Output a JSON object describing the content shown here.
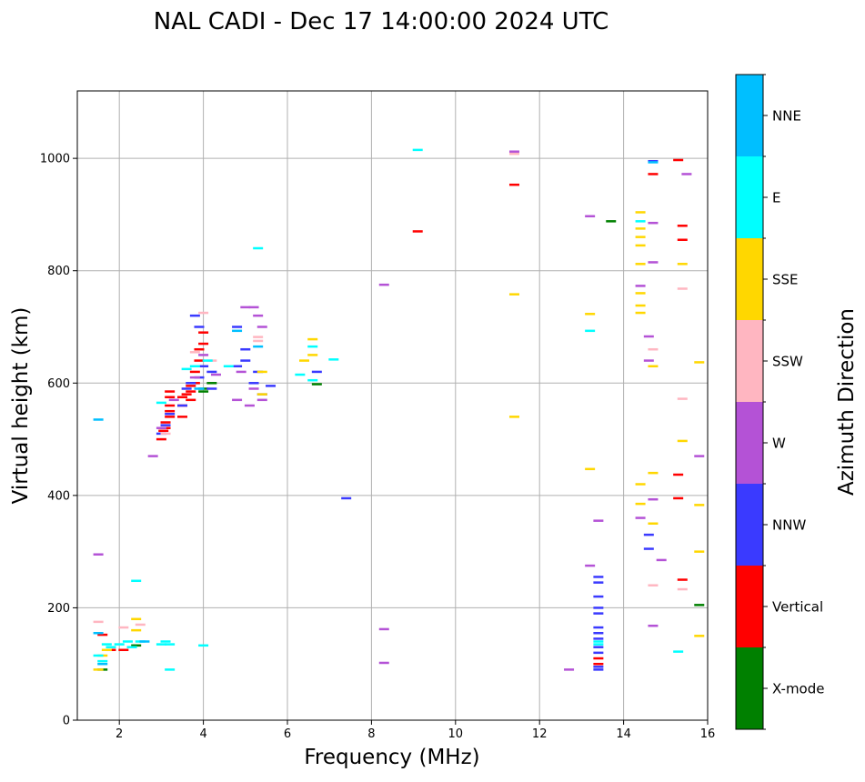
{
  "chart_data": {
    "type": "scatter",
    "title": "NAL CADI - Dec 17 14:00:00 2024 UTC",
    "xlabel": "Frequency (MHz)",
    "ylabel": "Virtual height (km)",
    "xlim": [
      1,
      16
    ],
    "ylim": [
      0,
      1120
    ],
    "xticks": [
      2,
      4,
      6,
      8,
      10,
      12,
      14,
      16
    ],
    "yticks": [
      0,
      200,
      400,
      600,
      800,
      1000
    ],
    "grid": true,
    "colorbar": {
      "label": "Azimuth Direction",
      "position": "right",
      "categories": [
        {
          "name": "X-mode",
          "color": "#008000"
        },
        {
          "name": "Vertical",
          "color": "#ff0000"
        },
        {
          "name": "NNW",
          "color": "#3a3aff"
        },
        {
          "name": "W",
          "color": "#b452d6"
        },
        {
          "name": "SSW",
          "color": "#ffb6c1"
        },
        {
          "name": "SSE",
          "color": "#ffd700"
        },
        {
          "name": "E",
          "color": "#00ffff"
        },
        {
          "name": "NNE",
          "color": "#00bfff"
        }
      ]
    },
    "series": [
      {
        "name": "X-mode",
        "color": "#008000",
        "points": [
          [
            1.6,
            90
          ],
          [
            2.4,
            133
          ],
          [
            4.0,
            585
          ],
          [
            4.0,
            590
          ],
          [
            4.2,
            600
          ],
          [
            6.7,
            598
          ],
          [
            13.7,
            888
          ],
          [
            15.8,
            205
          ]
        ]
      },
      {
        "name": "Vertical",
        "color": "#ff0000",
        "points": [
          [
            1.6,
            152
          ],
          [
            1.8,
            125
          ],
          [
            2.1,
            125
          ],
          [
            3.0,
            500
          ],
          [
            3.05,
            515
          ],
          [
            3.1,
            520
          ],
          [
            3.1,
            530
          ],
          [
            3.2,
            540
          ],
          [
            3.2,
            550
          ],
          [
            3.2,
            560
          ],
          [
            3.2,
            575
          ],
          [
            3.2,
            585
          ],
          [
            3.5,
            540
          ],
          [
            3.5,
            560
          ],
          [
            3.5,
            575
          ],
          [
            3.6,
            580
          ],
          [
            3.7,
            595
          ],
          [
            3.7,
            585
          ],
          [
            3.7,
            570
          ],
          [
            3.8,
            600
          ],
          [
            3.8,
            620
          ],
          [
            3.9,
            640
          ],
          [
            3.9,
            660
          ],
          [
            4.0,
            670
          ],
          [
            4.0,
            690
          ],
          [
            9.1,
            870
          ],
          [
            11.4,
            953
          ],
          [
            13.4,
            110
          ],
          [
            13.4,
            100
          ],
          [
            14.7,
            972
          ],
          [
            15.3,
            997
          ],
          [
            15.4,
            880
          ],
          [
            15.4,
            855
          ],
          [
            15.3,
            437
          ],
          [
            15.3,
            395
          ],
          [
            15.4,
            250
          ]
        ]
      },
      {
        "name": "NNW",
        "color": "#3a3aff",
        "points": [
          [
            3.0,
            510
          ],
          [
            3.1,
            525
          ],
          [
            3.2,
            545
          ],
          [
            3.5,
            560
          ],
          [
            3.6,
            590
          ],
          [
            3.7,
            600
          ],
          [
            3.8,
            720
          ],
          [
            3.9,
            700
          ],
          [
            3.9,
            610
          ],
          [
            4.0,
            630
          ],
          [
            4.2,
            590
          ],
          [
            4.2,
            620
          ],
          [
            4.8,
            700
          ],
          [
            4.8,
            630
          ],
          [
            5.0,
            640
          ],
          [
            5.0,
            660
          ],
          [
            5.2,
            600
          ],
          [
            5.3,
            620
          ],
          [
            5.4,
            580
          ],
          [
            5.6,
            595
          ],
          [
            6.7,
            620
          ],
          [
            7.4,
            395
          ],
          [
            13.4,
            255
          ],
          [
            13.4,
            245
          ],
          [
            13.4,
            220
          ],
          [
            13.4,
            200
          ],
          [
            13.4,
            190
          ],
          [
            13.4,
            165
          ],
          [
            13.4,
            155
          ],
          [
            13.4,
            145
          ],
          [
            13.4,
            130
          ],
          [
            13.4,
            120
          ],
          [
            13.4,
            95
          ],
          [
            13.4,
            90
          ],
          [
            14.7,
            995
          ],
          [
            14.6,
            330
          ],
          [
            14.6,
            305
          ]
        ]
      },
      {
        "name": "W",
        "color": "#b452d6",
        "points": [
          [
            1.5,
            295
          ],
          [
            2.8,
            470
          ],
          [
            3.0,
            520
          ],
          [
            3.3,
            570
          ],
          [
            3.8,
            610
          ],
          [
            4.0,
            650
          ],
          [
            4.3,
            615
          ],
          [
            4.8,
            570
          ],
          [
            4.9,
            620
          ],
          [
            5.0,
            735
          ],
          [
            5.1,
            560
          ],
          [
            5.2,
            735
          ],
          [
            5.3,
            720
          ],
          [
            5.4,
            700
          ],
          [
            5.4,
            570
          ],
          [
            5.2,
            590
          ],
          [
            8.3,
            775
          ],
          [
            8.3,
            162
          ],
          [
            8.3,
            102
          ],
          [
            11.4,
            1012
          ],
          [
            12.7,
            90
          ],
          [
            13.2,
            897
          ],
          [
            13.2,
            275
          ],
          [
            13.4,
            355
          ],
          [
            14.4,
            773
          ],
          [
            14.4,
            360
          ],
          [
            14.6,
            640
          ],
          [
            14.6,
            683
          ],
          [
            14.7,
            885
          ],
          [
            14.7,
            815
          ],
          [
            14.7,
            393
          ],
          [
            14.7,
            168
          ],
          [
            14.9,
            285
          ],
          [
            15.5,
            972
          ],
          [
            15.8,
            470
          ]
        ]
      },
      {
        "name": "SSW",
        "color": "#ffb6c1",
        "points": [
          [
            1.5,
            175
          ],
          [
            2.1,
            165
          ],
          [
            2.5,
            170
          ],
          [
            3.1,
            510
          ],
          [
            3.8,
            655
          ],
          [
            4.0,
            725
          ],
          [
            4.2,
            640
          ],
          [
            5.3,
            682
          ],
          [
            5.3,
            675
          ],
          [
            11.4,
            1008
          ],
          [
            14.7,
            660
          ],
          [
            14.7,
            240
          ],
          [
            15.4,
            768
          ],
          [
            15.4,
            572
          ],
          [
            15.4,
            233
          ]
        ]
      },
      {
        "name": "SSE",
        "color": "#ffd700",
        "points": [
          [
            1.5,
            90
          ],
          [
            1.6,
            115
          ],
          [
            1.7,
            125
          ],
          [
            2.4,
            180
          ],
          [
            2.4,
            160
          ],
          [
            5.4,
            620
          ],
          [
            5.4,
            580
          ],
          [
            6.4,
            640
          ],
          [
            6.6,
            678
          ],
          [
            6.6,
            650
          ],
          [
            11.4,
            758
          ],
          [
            11.4,
            540
          ],
          [
            13.2,
            723
          ],
          [
            13.2,
            447
          ],
          [
            14.4,
            904
          ],
          [
            14.4,
            875
          ],
          [
            14.4,
            860
          ],
          [
            14.4,
            845
          ],
          [
            14.4,
            812
          ],
          [
            14.4,
            760
          ],
          [
            14.4,
            738
          ],
          [
            14.4,
            725
          ],
          [
            14.4,
            420
          ],
          [
            14.4,
            385
          ],
          [
            14.7,
            440
          ],
          [
            14.7,
            350
          ],
          [
            14.7,
            630
          ],
          [
            15.4,
            812
          ],
          [
            15.4,
            497
          ],
          [
            15.8,
            637
          ],
          [
            15.8,
            383
          ],
          [
            15.8,
            300
          ],
          [
            15.8,
            150
          ]
        ]
      },
      {
        "name": "E",
        "color": "#00ffff",
        "points": [
          [
            1.5,
            115
          ],
          [
            1.6,
            105
          ],
          [
            1.7,
            135
          ],
          [
            1.8,
            130
          ],
          [
            2.0,
            135
          ],
          [
            2.2,
            140
          ],
          [
            2.3,
            130
          ],
          [
            2.5,
            140
          ],
          [
            3.0,
            135
          ],
          [
            3.1,
            140
          ],
          [
            3.2,
            135
          ],
          [
            3.2,
            90
          ],
          [
            4.0,
            133
          ],
          [
            2.4,
            248
          ],
          [
            3.0,
            565
          ],
          [
            3.6,
            625
          ],
          [
            3.8,
            630
          ],
          [
            4.1,
            640
          ],
          [
            4.6,
            630
          ],
          [
            5.3,
            840
          ],
          [
            6.3,
            615
          ],
          [
            6.6,
            665
          ],
          [
            6.6,
            605
          ],
          [
            7.1,
            642
          ],
          [
            9.1,
            1015
          ],
          [
            13.2,
            693
          ],
          [
            13.4,
            140
          ],
          [
            13.4,
            135
          ],
          [
            14.4,
            888
          ],
          [
            15.3,
            122
          ]
        ]
      },
      {
        "name": "NNE",
        "color": "#00bfff",
        "points": [
          [
            1.5,
            535
          ],
          [
            1.5,
            155
          ],
          [
            1.6,
            100
          ],
          [
            2.6,
            140
          ],
          [
            3.9,
            590
          ],
          [
            4.8,
            693
          ],
          [
            5.3,
            665
          ],
          [
            14.7,
            993
          ]
        ]
      }
    ]
  }
}
